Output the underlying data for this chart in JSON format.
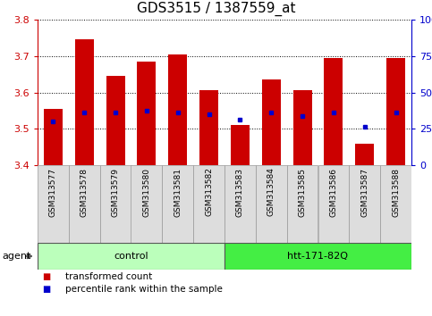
{
  "title": "GDS3515 / 1387559_at",
  "samples": [
    "GSM313577",
    "GSM313578",
    "GSM313579",
    "GSM313580",
    "GSM313581",
    "GSM313582",
    "GSM313583",
    "GSM313584",
    "GSM313585",
    "GSM313586",
    "GSM313587",
    "GSM313588"
  ],
  "bar_values": [
    3.555,
    3.745,
    3.645,
    3.685,
    3.705,
    3.605,
    3.51,
    3.635,
    3.605,
    3.695,
    3.46,
    3.695
  ],
  "percentile_values": [
    3.52,
    3.545,
    3.545,
    3.55,
    3.545,
    3.54,
    3.525,
    3.545,
    3.535,
    3.545,
    3.505,
    3.545
  ],
  "ymin": 3.4,
  "ymax": 3.8,
  "y2min": 0,
  "y2max": 100,
  "yticks": [
    3.4,
    3.5,
    3.6,
    3.7,
    3.8
  ],
  "y2ticks": [
    0,
    25,
    50,
    75,
    100
  ],
  "y2ticklabels": [
    "0",
    "25",
    "50",
    "75",
    "100%"
  ],
  "bar_color": "#cc0000",
  "percentile_color": "#0000cc",
  "grid_color": "#000000",
  "bar_width": 0.6,
  "groups": [
    {
      "label": "control",
      "start": 0,
      "end": 5,
      "color": "#bbffbb"
    },
    {
      "label": "htt-171-82Q",
      "start": 6,
      "end": 11,
      "color": "#44ee44"
    }
  ],
  "agent_label": "agent",
  "legend_items": [
    {
      "label": "transformed count",
      "color": "#cc0000"
    },
    {
      "label": "percentile rank within the sample",
      "color": "#0000cc"
    }
  ],
  "background_color": "#ffffff",
  "plot_bg_color": "#ffffff",
  "tick_color_left": "#cc0000",
  "tick_color_right": "#0000cc",
  "title_fontsize": 11,
  "tick_fontsize": 8,
  "label_fontsize": 7.5,
  "sample_label_fontsize": 6.5,
  "group_label_fontsize": 8,
  "sample_box_color": "#dddddd",
  "sample_box_edge": "#999999"
}
